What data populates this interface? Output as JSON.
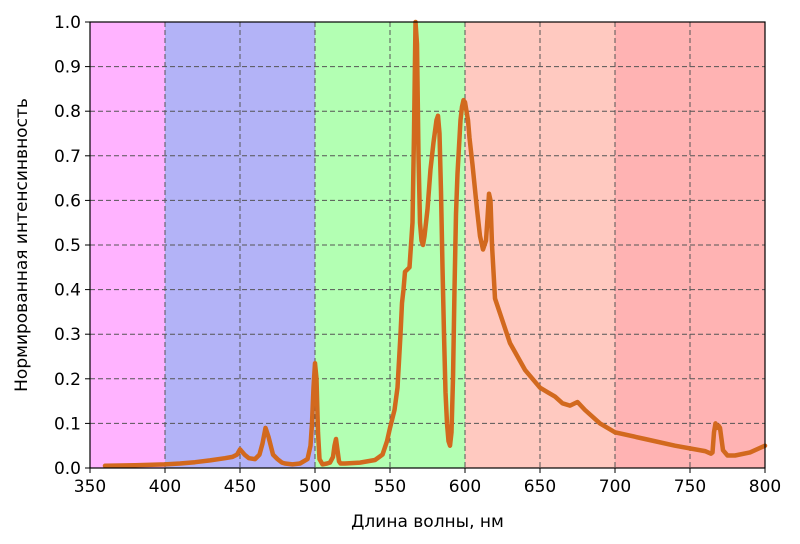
{
  "chart_data": {
    "type": "line",
    "title": "",
    "xlabel": "Длина волны, нм",
    "ylabel": "Нормированная интенсинвность",
    "xlim": [
      350,
      800
    ],
    "ylim": [
      0.0,
      1.0
    ],
    "grid": true,
    "xticks": [
      350,
      400,
      450,
      500,
      550,
      600,
      650,
      700,
      750,
      800
    ],
    "xtick_labels": [
      "350",
      "400",
      "450",
      "500",
      "550",
      "600",
      "650",
      "700",
      "750",
      "800"
    ],
    "yticks": [
      0.0,
      0.1,
      0.2,
      0.3,
      0.4,
      0.5,
      0.6,
      0.7,
      0.8,
      0.9,
      1.0
    ],
    "ytick_labels": [
      "0.0",
      "0.1",
      "0.2",
      "0.3",
      "0.4",
      "0.5",
      "0.6",
      "0.7",
      "0.8",
      "0.9",
      "1.0"
    ],
    "bands": [
      {
        "from": 350,
        "to": 400,
        "color": "#ffb3ff"
      },
      {
        "from": 400,
        "to": 500,
        "color": "#b3b3f7"
      },
      {
        "from": 500,
        "to": 600,
        "color": "#b3ffb3"
      },
      {
        "from": 600,
        "to": 700,
        "color": "#ffc9c0"
      },
      {
        "from": 700,
        "to": 800,
        "color": "#ffb3b3"
      }
    ],
    "series": [
      {
        "color": "#d2691e",
        "x": [
          360,
          380,
          400,
          410,
          420,
          430,
          440,
          445,
          448,
          450,
          453,
          456,
          460,
          463,
          465,
          467,
          469,
          472,
          475,
          478,
          480,
          485,
          490,
          495,
          497,
          498,
          499,
          500,
          501,
          502,
          503,
          505,
          508,
          510,
          512,
          513,
          514,
          515,
          516,
          517,
          520,
          530,
          540,
          545,
          548,
          550,
          553,
          555,
          557,
          558,
          559,
          560,
          563,
          565,
          566,
          567,
          568,
          569,
          570,
          571,
          572,
          573,
          575,
          577,
          579,
          581,
          582,
          583,
          584,
          585,
          586,
          587,
          588,
          589,
          590,
          591,
          592,
          593,
          594,
          595,
          597,
          598,
          599,
          600,
          601,
          602,
          603,
          605,
          608,
          610,
          612,
          614,
          615,
          616,
          617,
          618,
          620,
          625,
          630,
          635,
          640,
          645,
          650,
          655,
          660,
          665,
          670,
          675,
          680,
          690,
          700,
          720,
          740,
          760,
          764,
          765,
          766,
          767,
          768,
          769,
          770,
          772,
          775,
          780,
          790,
          800
        ],
        "y": [
          0.005,
          0.006,
          0.008,
          0.01,
          0.013,
          0.017,
          0.022,
          0.025,
          0.03,
          0.042,
          0.03,
          0.022,
          0.02,
          0.03,
          0.055,
          0.09,
          0.07,
          0.03,
          0.02,
          0.012,
          0.01,
          0.008,
          0.01,
          0.02,
          0.05,
          0.1,
          0.18,
          0.235,
          0.2,
          0.08,
          0.02,
          0.008,
          0.01,
          0.012,
          0.025,
          0.05,
          0.065,
          0.04,
          0.015,
          0.01,
          0.01,
          0.012,
          0.018,
          0.03,
          0.06,
          0.09,
          0.13,
          0.18,
          0.3,
          0.37,
          0.4,
          0.44,
          0.45,
          0.55,
          0.75,
          1.0,
          0.95,
          0.7,
          0.55,
          0.51,
          0.5,
          0.52,
          0.58,
          0.67,
          0.73,
          0.78,
          0.79,
          0.75,
          0.62,
          0.45,
          0.3,
          0.17,
          0.1,
          0.06,
          0.05,
          0.08,
          0.2,
          0.4,
          0.57,
          0.66,
          0.78,
          0.81,
          0.825,
          0.82,
          0.8,
          0.78,
          0.74,
          0.68,
          0.58,
          0.52,
          0.49,
          0.51,
          0.56,
          0.615,
          0.6,
          0.5,
          0.38,
          0.33,
          0.28,
          0.25,
          0.22,
          0.2,
          0.18,
          0.17,
          0.16,
          0.145,
          0.14,
          0.148,
          0.13,
          0.1,
          0.08,
          0.065,
          0.05,
          0.038,
          0.032,
          0.035,
          0.08,
          0.1,
          0.09,
          0.095,
          0.09,
          0.04,
          0.028,
          0.028,
          0.035,
          0.05
        ]
      }
    ]
  }
}
